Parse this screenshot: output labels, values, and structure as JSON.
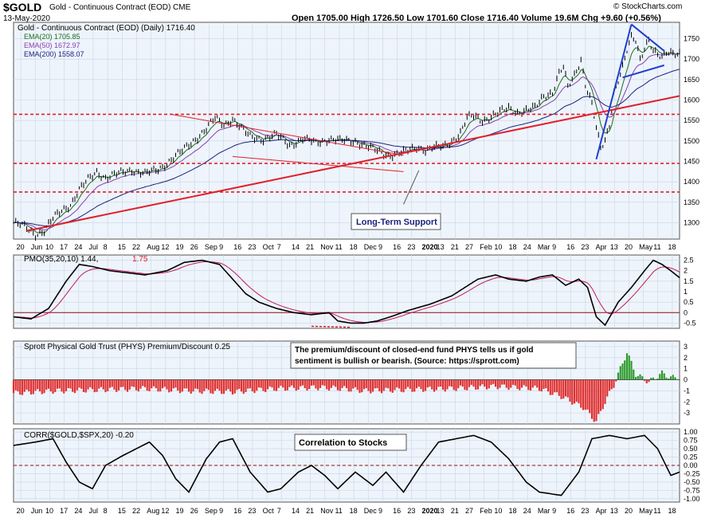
{
  "header": {
    "symbol": "$GOLD",
    "description": "Gold - Continuous Contract (EOD) CME",
    "date": "13-May-2020",
    "ohlc": "Open 1705.00  High 1726.50  Low 1701.60  Close 1716.40  Volume 19.6M  Chg +9.60 (+0.56%)",
    "brand": "© StockCharts.com"
  },
  "x_axis": {
    "labels": [
      "20",
      "Jun",
      "10",
      "17",
      "24",
      "Jul",
      "8",
      "15",
      "22",
      "Aug",
      "12",
      "19",
      "26",
      "Sep",
      "9",
      "16",
      "23",
      "Oct",
      "7",
      "14",
      "21",
      "Nov",
      "11",
      "18",
      "Dec",
      "9",
      "16",
      "23",
      "2020",
      "13",
      "21",
      "27",
      "Feb",
      "10",
      "18",
      "24",
      "Mar",
      "9",
      "16",
      "23",
      "Apr",
      "13",
      "20",
      "May",
      "11",
      "18"
    ]
  },
  "chart_data": [
    {
      "type": "line",
      "panel": "price",
      "title": "Gold - Continuous Contract (EOD) (Daily) 1716.40",
      "y_ticks": [
        1300,
        1350,
        1400,
        1450,
        1500,
        1550,
        1600,
        1650,
        1700,
        1750
      ],
      "ylim": [
        1260,
        1790
      ],
      "price_anchors": [
        [
          0,
          1300
        ],
        [
          5,
          1290
        ],
        [
          10,
          1272
        ],
        [
          14,
          1280
        ],
        [
          18,
          1310
        ],
        [
          22,
          1330
        ],
        [
          26,
          1345
        ],
        [
          30,
          1380
        ],
        [
          34,
          1405
        ],
        [
          38,
          1425
        ],
        [
          42,
          1410
        ],
        [
          48,
          1420
        ],
        [
          54,
          1430
        ],
        [
          60,
          1420
        ],
        [
          66,
          1430
        ],
        [
          72,
          1455
        ],
        [
          78,
          1480
        ],
        [
          84,
          1510
        ],
        [
          88,
          1530
        ],
        [
          92,
          1555
        ],
        [
          96,
          1540
        ],
        [
          100,
          1555
        ],
        [
          104,
          1530
        ],
        [
          108,
          1510
        ],
        [
          114,
          1505
        ],
        [
          120,
          1515
        ],
        [
          126,
          1490
        ],
        [
          132,
          1505
        ],
        [
          138,
          1495
        ],
        [
          144,
          1505
        ],
        [
          150,
          1500
        ],
        [
          156,
          1500
        ],
        [
          160,
          1490
        ],
        [
          164,
          1480
        ],
        [
          168,
          1470
        ],
        [
          172,
          1465
        ],
        [
          176,
          1470
        ],
        [
          180,
          1475
        ],
        [
          184,
          1485
        ],
        [
          188,
          1478
        ],
        [
          192,
          1484
        ],
        [
          196,
          1485
        ],
        [
          200,
          1500
        ],
        [
          204,
          1520
        ],
        [
          207,
          1555
        ],
        [
          210,
          1560
        ],
        [
          214,
          1550
        ],
        [
          218,
          1560
        ],
        [
          222,
          1570
        ],
        [
          226,
          1580
        ],
        [
          230,
          1570
        ],
        [
          234,
          1575
        ],
        [
          238,
          1580
        ],
        [
          242,
          1610
        ],
        [
          246,
          1620
        ],
        [
          249,
          1665
        ],
        [
          251,
          1680
        ],
        [
          253,
          1630
        ],
        [
          256,
          1660
        ],
        [
          259,
          1700
        ],
        [
          261,
          1640
        ],
        [
          264,
          1590
        ],
        [
          266,
          1530
        ],
        [
          268,
          1480
        ],
        [
          270,
          1500
        ],
        [
          272,
          1540
        ],
        [
          274,
          1620
        ],
        [
          276,
          1650
        ],
        [
          278,
          1680
        ],
        [
          280,
          1720
        ],
        [
          282,
          1750
        ],
        [
          284,
          1745
        ],
        [
          286,
          1700
        ],
        [
          288,
          1730
        ],
        [
          290,
          1750
        ],
        [
          292,
          1720
        ],
        [
          294,
          1710
        ],
        [
          296,
          1700
        ],
        [
          298,
          1715
        ],
        [
          300,
          1716
        ]
      ],
      "ema": [
        {
          "name": "EMA(20) 1705.85",
          "color": "#1e6b1e",
          "lag": 6
        },
        {
          "name": "EMA(50) 1672.97",
          "color": "#8a3fb0",
          "lag": 15
        },
        {
          "name": "EMA(200) 1558.07",
          "color": "#1a237e",
          "lag": 50
        }
      ],
      "horizontal_lines": [
        1565,
        1445,
        1375
      ],
      "annotation": "Long-Term Support"
    },
    {
      "type": "line",
      "panel": "pmo",
      "title": "PMO(35,20,10) 1.44, 1.75",
      "y_ticks": [
        -0.5,
        0,
        0.5,
        1,
        1.5,
        2,
        2.5
      ],
      "ylim": [
        -0.75,
        2.75
      ],
      "pmo_anchors": [
        [
          0,
          -0.2
        ],
        [
          8,
          -0.3
        ],
        [
          16,
          0.2
        ],
        [
          24,
          1.5
        ],
        [
          30,
          2.3
        ],
        [
          36,
          2.2
        ],
        [
          44,
          2.0
        ],
        [
          52,
          1.9
        ],
        [
          60,
          1.8
        ],
        [
          70,
          2.0
        ],
        [
          78,
          2.4
        ],
        [
          86,
          2.5
        ],
        [
          94,
          2.3
        ],
        [
          100,
          1.6
        ],
        [
          106,
          0.9
        ],
        [
          112,
          0.5
        ],
        [
          120,
          0.2
        ],
        [
          128,
          0.0
        ],
        [
          136,
          -0.1
        ],
        [
          144,
          0.0
        ],
        [
          148,
          -0.4
        ],
        [
          154,
          -0.5
        ],
        [
          160,
          -0.5
        ],
        [
          166,
          -0.4
        ],
        [
          172,
          -0.2
        ],
        [
          180,
          0.1
        ],
        [
          190,
          0.4
        ],
        [
          200,
          0.8
        ],
        [
          206,
          1.2
        ],
        [
          212,
          1.6
        ],
        [
          220,
          1.8
        ],
        [
          226,
          1.6
        ],
        [
          234,
          1.5
        ],
        [
          240,
          1.7
        ],
        [
          246,
          1.8
        ],
        [
          252,
          1.3
        ],
        [
          258,
          1.6
        ],
        [
          262,
          1.2
        ],
        [
          266,
          -0.2
        ],
        [
          270,
          -0.6
        ],
        [
          276,
          0.5
        ],
        [
          282,
          1.2
        ],
        [
          288,
          2.0
        ],
        [
          292,
          2.5
        ],
        [
          296,
          2.3
        ],
        [
          300,
          2.0
        ],
        [
          306,
          1.5
        ]
      ]
    },
    {
      "type": "bar",
      "panel": "phys",
      "title": "Sprott Physical Gold Trust (PHYS) Premium/Discount 0.25",
      "note": "The premium/discount of closed-end fund PHYS tells us if gold sentiment is bullish or bearish. (Source: https://sprott.com)",
      "y_ticks": [
        -3,
        -2,
        -1,
        0,
        1,
        2,
        3
      ],
      "ylim": [
        -4,
        3.5
      ],
      "phys_anchors": [
        [
          0,
          -1.2
        ],
        [
          20,
          -1.0
        ],
        [
          40,
          -0.9
        ],
        [
          60,
          -0.8
        ],
        [
          80,
          -1.0
        ],
        [
          100,
          -1.1
        ],
        [
          120,
          -0.8
        ],
        [
          140,
          -0.7
        ],
        [
          150,
          -0.8
        ],
        [
          160,
          -1.0
        ],
        [
          180,
          -0.9
        ],
        [
          200,
          -0.8
        ],
        [
          220,
          -0.6
        ],
        [
          240,
          -0.8
        ],
        [
          250,
          -1.5
        ],
        [
          260,
          -2.5
        ],
        [
          266,
          -3.8
        ],
        [
          270,
          -2.0
        ],
        [
          274,
          -0.5
        ],
        [
          280,
          2.5
        ],
        [
          284,
          0.5
        ],
        [
          290,
          -0.2
        ],
        [
          296,
          0.6
        ],
        [
          300,
          0.2
        ]
      ]
    },
    {
      "type": "line",
      "panel": "corr",
      "title": "CORR($GOLD,$SPX,20) -0.20",
      "annotation": "Correlation to Stocks",
      "y_ticks": [
        -1.0,
        -0.75,
        -0.5,
        -0.25,
        0,
        0.25,
        0.5,
        0.75,
        1.0
      ],
      "ylim": [
        -1.1,
        1.1
      ],
      "corr_anchors": [
        [
          0,
          0.6
        ],
        [
          10,
          0.7
        ],
        [
          18,
          0.8
        ],
        [
          24,
          0.1
        ],
        [
          30,
          -0.5
        ],
        [
          36,
          -0.7
        ],
        [
          42,
          0.0
        ],
        [
          50,
          0.3
        ],
        [
          56,
          0.5
        ],
        [
          62,
          0.7
        ],
        [
          68,
          0.3
        ],
        [
          74,
          -0.4
        ],
        [
          80,
          -0.8
        ],
        [
          88,
          0.2
        ],
        [
          94,
          0.7
        ],
        [
          100,
          0.8
        ],
        [
          108,
          -0.2
        ],
        [
          116,
          -0.8
        ],
        [
          122,
          -0.7
        ],
        [
          130,
          -0.2
        ],
        [
          136,
          0.0
        ],
        [
          142,
          -0.3
        ],
        [
          148,
          -0.7
        ],
        [
          156,
          -0.2
        ],
        [
          164,
          -0.6
        ],
        [
          170,
          -0.2
        ],
        [
          178,
          -0.8
        ],
        [
          186,
          0.0
        ],
        [
          194,
          0.7
        ],
        [
          202,
          0.8
        ],
        [
          210,
          0.9
        ],
        [
          218,
          0.7
        ],
        [
          226,
          0.2
        ],
        [
          234,
          -0.5
        ],
        [
          240,
          -0.8
        ],
        [
          250,
          -0.9
        ],
        [
          258,
          -0.2
        ],
        [
          264,
          0.8
        ],
        [
          272,
          0.9
        ],
        [
          280,
          0.8
        ],
        [
          288,
          0.9
        ],
        [
          294,
          0.5
        ],
        [
          300,
          -0.3
        ],
        [
          304,
          -0.2
        ]
      ]
    }
  ],
  "panel_titles": {
    "price": "Gold - Continuous Contract (EOD) (Daily) 1716.40",
    "pmo_label": "PMO(35,20,10) 1.44,",
    "pmo_sig": "1.75",
    "phys": "Sprott Physical Gold Trust (PHYS) Premium/Discount 0.25",
    "corr": "CORR($GOLD,$SPX,20) -0.20"
  },
  "legend": {
    "ema20": "EMA(20) 1705.85",
    "ema50": "EMA(50) 1672.97",
    "ema200": "EMA(200) 1558.07"
  },
  "annotations": {
    "support": "Long-Term Support",
    "phys_note_1": "The premium/discount of closed-end fund PHYS tells us if gold",
    "phys_note_2": "sentiment is bullish or bearish. (Source: https://sprott.com)",
    "corr_note": "Correlation to Stocks"
  }
}
